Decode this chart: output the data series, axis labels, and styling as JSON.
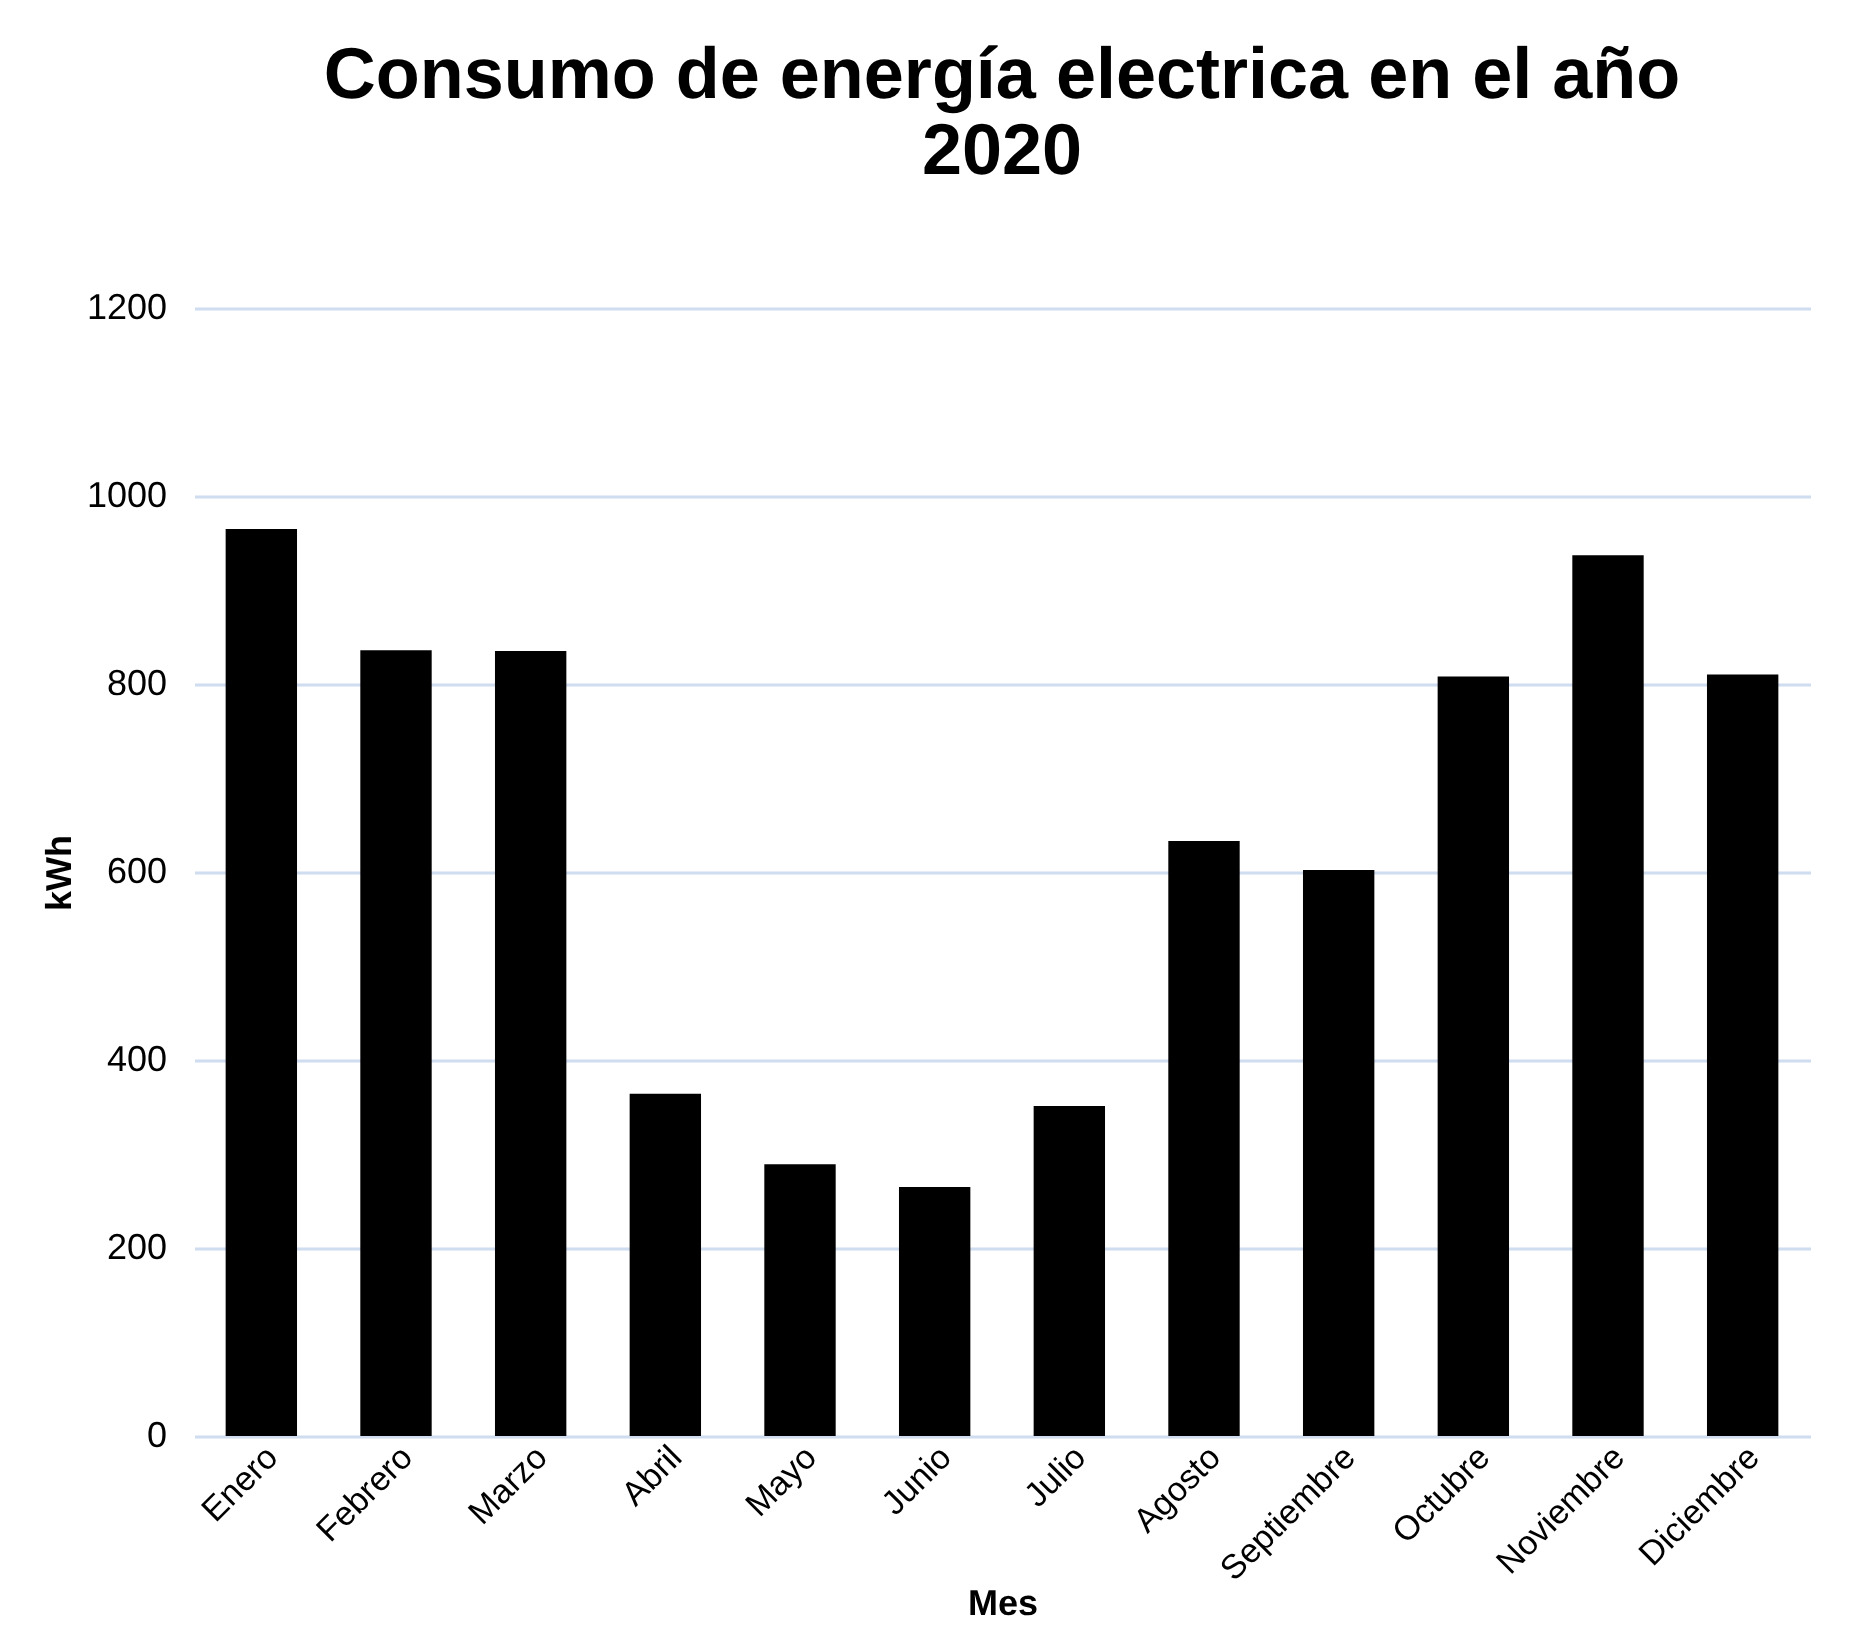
{
  "chart_data": {
    "type": "bar",
    "title": [
      "Consumo de energía electrica en el año",
      "2020"
    ],
    "xlabel": "Mes",
    "ylabel": "kWh",
    "categories": [
      "Enero",
      "Febrero",
      "Marzo",
      "Abril",
      "Mayo",
      "Junio",
      "Julio",
      "Agosto",
      "Septiembre",
      "Octubre",
      "Noviembre",
      "Diciembre"
    ],
    "values": [
      965,
      836,
      835,
      364,
      289,
      265,
      351,
      633,
      602,
      808,
      937,
      810
    ],
    "color": "#000000",
    "ylim": [
      0,
      1200
    ],
    "yticks": [
      0,
      200,
      400,
      600,
      800,
      1000,
      1200
    ],
    "grid": "y"
  }
}
